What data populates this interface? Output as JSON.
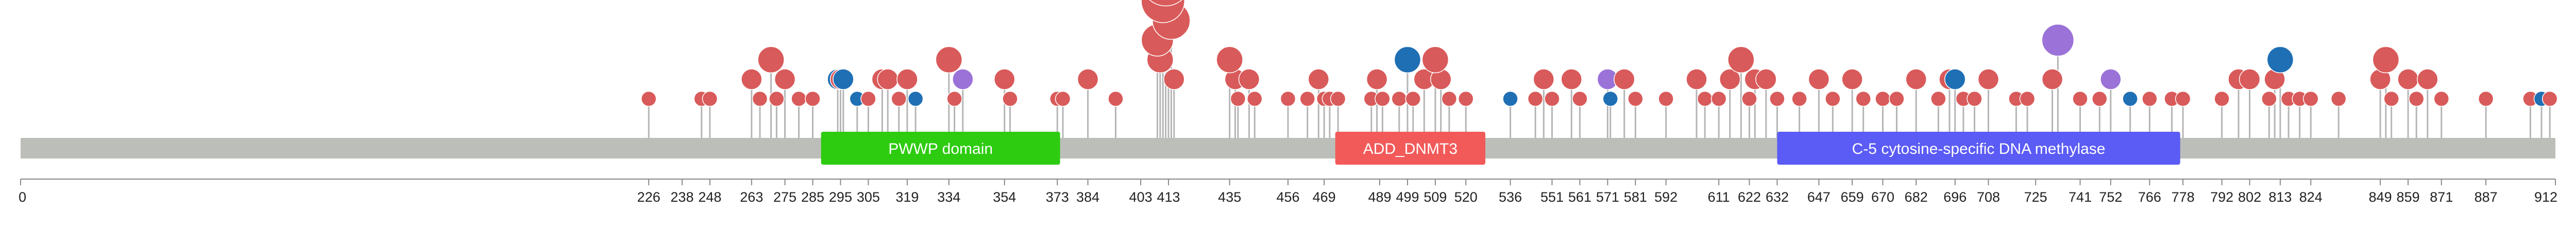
{
  "chart_data": {
    "type": "lollipop",
    "xlim": [
      0,
      912
    ],
    "tick_labels": [
      "0",
      "226",
      "238",
      "248",
      "263",
      "275",
      "285",
      "295",
      "305",
      "319",
      "334",
      "354",
      "373",
      "384",
      "403",
      "413",
      "435",
      "456",
      "469",
      "489",
      "499",
      "509",
      "520",
      "536",
      "551",
      "561",
      "571",
      "581",
      "592",
      "611",
      "622",
      "632",
      "647",
      "659",
      "670",
      "682",
      "696",
      "708",
      "725",
      "741",
      "752",
      "766",
      "778",
      "792",
      "802",
      "813",
      "824",
      "849",
      "859",
      "871",
      "887",
      "912"
    ],
    "domains": [
      {
        "label": "PWWP domain",
        "start": 288,
        "end": 374,
        "color": "#2ecc11"
      },
      {
        "label": "ADD_DNMT3",
        "start": 473,
        "end": 527,
        "color": "#f25a5a"
      },
      {
        "label": "C-5 cytosine-specific DNA methylase",
        "start": 632,
        "end": 777,
        "color": "#5b5bf5"
      }
    ],
    "mutations": [
      {
        "pos": 226,
        "count": 1,
        "color": "#d95a5a"
      },
      {
        "pos": 245,
        "count": 1,
        "color": "#d95a5a"
      },
      {
        "pos": 248,
        "count": 1,
        "color": "#d95a5a"
      },
      {
        "pos": 263,
        "count": 2,
        "color": "#d95a5a"
      },
      {
        "pos": 266,
        "count": 1,
        "color": "#d95a5a"
      },
      {
        "pos": 270,
        "count": 3,
        "color": "#d95a5a"
      },
      {
        "pos": 272,
        "count": 1,
        "color": "#d95a5a"
      },
      {
        "pos": 275,
        "count": 2,
        "color": "#d95a5a"
      },
      {
        "pos": 280,
        "count": 1,
        "color": "#d95a5a"
      },
      {
        "pos": 285,
        "count": 1,
        "color": "#d95a5a"
      },
      {
        "pos": 294,
        "count": 2,
        "color": "#1f6fb4"
      },
      {
        "pos": 295,
        "count": 2,
        "color": "#d95a5a"
      },
      {
        "pos": 296,
        "count": 2,
        "color": "#1f6fb4"
      },
      {
        "pos": 301,
        "count": 1,
        "color": "#1f6fb4"
      },
      {
        "pos": 305,
        "count": 1,
        "color": "#d95a5a"
      },
      {
        "pos": 310,
        "count": 2,
        "color": "#d95a5a"
      },
      {
        "pos": 312,
        "count": 2,
        "color": "#d95a5a"
      },
      {
        "pos": 316,
        "count": 1,
        "color": "#d95a5a"
      },
      {
        "pos": 319,
        "count": 2,
        "color": "#d95a5a"
      },
      {
        "pos": 322,
        "count": 1,
        "color": "#1f6fb4"
      },
      {
        "pos": 334,
        "count": 3,
        "color": "#d95a5a"
      },
      {
        "pos": 336,
        "count": 1,
        "color": "#d95a5a"
      },
      {
        "pos": 339,
        "count": 2,
        "color": "#9b72d8"
      },
      {
        "pos": 354,
        "count": 2,
        "color": "#d95a5a"
      },
      {
        "pos": 356,
        "count": 1,
        "color": "#d95a5a"
      },
      {
        "pos": 373,
        "count": 1,
        "color": "#d95a5a"
      },
      {
        "pos": 375,
        "count": 1,
        "color": "#d95a5a"
      },
      {
        "pos": 384,
        "count": 2,
        "color": "#d95a5a"
      },
      {
        "pos": 394,
        "count": 1,
        "color": "#d95a5a"
      },
      {
        "pos": 409,
        "count": 4,
        "color": "#d95a5a"
      },
      {
        "pos": 410,
        "count": 3,
        "color": "#d95a5a"
      },
      {
        "pos": 411,
        "count": 6,
        "color": "#d95a5a"
      },
      {
        "pos": 412,
        "count": 7,
        "color": "#d95a5a"
      },
      {
        "pos": 413,
        "count": 8,
        "color": "#d95a5a"
      },
      {
        "pos": 414,
        "count": 5,
        "color": "#d95a5a"
      },
      {
        "pos": 415,
        "count": 2,
        "color": "#d95a5a"
      },
      {
        "pos": 435,
        "count": 3,
        "color": "#d95a5a"
      },
      {
        "pos": 437,
        "count": 2,
        "color": "#d95a5a"
      },
      {
        "pos": 438,
        "count": 1,
        "color": "#d95a5a"
      },
      {
        "pos": 442,
        "count": 2,
        "color": "#d95a5a"
      },
      {
        "pos": 444,
        "count": 1,
        "color": "#d95a5a"
      },
      {
        "pos": 456,
        "count": 1,
        "color": "#d95a5a"
      },
      {
        "pos": 463,
        "count": 1,
        "color": "#d95a5a"
      },
      {
        "pos": 467,
        "count": 2,
        "color": "#d95a5a"
      },
      {
        "pos": 469,
        "count": 1,
        "color": "#d95a5a"
      },
      {
        "pos": 471,
        "count": 1,
        "color": "#d95a5a"
      },
      {
        "pos": 474,
        "count": 1,
        "color": "#d95a5a"
      },
      {
        "pos": 486,
        "count": 1,
        "color": "#d95a5a"
      },
      {
        "pos": 488,
        "count": 2,
        "color": "#d95a5a"
      },
      {
        "pos": 490,
        "count": 1,
        "color": "#d95a5a"
      },
      {
        "pos": 496,
        "count": 1,
        "color": "#d95a5a"
      },
      {
        "pos": 499,
        "count": 3,
        "color": "#1f6fb4"
      },
      {
        "pos": 501,
        "count": 1,
        "color": "#d95a5a"
      },
      {
        "pos": 505,
        "count": 2,
        "color": "#d95a5a"
      },
      {
        "pos": 509,
        "count": 3,
        "color": "#d95a5a"
      },
      {
        "pos": 511,
        "count": 2,
        "color": "#d95a5a"
      },
      {
        "pos": 514,
        "count": 1,
        "color": "#d95a5a"
      },
      {
        "pos": 520,
        "count": 1,
        "color": "#d95a5a"
      },
      {
        "pos": 536,
        "count": 1,
        "color": "#1f6fb4"
      },
      {
        "pos": 545,
        "count": 1,
        "color": "#d95a5a"
      },
      {
        "pos": 548,
        "count": 2,
        "color": "#d95a5a"
      },
      {
        "pos": 551,
        "count": 1,
        "color": "#d95a5a"
      },
      {
        "pos": 558,
        "count": 2,
        "color": "#d95a5a"
      },
      {
        "pos": 561,
        "count": 1,
        "color": "#d95a5a"
      },
      {
        "pos": 571,
        "count": 2,
        "color": "#9b72d8"
      },
      {
        "pos": 572,
        "count": 1,
        "color": "#1f6fb4"
      },
      {
        "pos": 577,
        "count": 2,
        "color": "#d95a5a"
      },
      {
        "pos": 581,
        "count": 1,
        "color": "#d95a5a"
      },
      {
        "pos": 592,
        "count": 1,
        "color": "#d95a5a"
      },
      {
        "pos": 603,
        "count": 2,
        "color": "#d95a5a"
      },
      {
        "pos": 606,
        "count": 1,
        "color": "#d95a5a"
      },
      {
        "pos": 611,
        "count": 1,
        "color": "#d95a5a"
      },
      {
        "pos": 615,
        "count": 2,
        "color": "#d95a5a"
      },
      {
        "pos": 619,
        "count": 3,
        "color": "#d95a5a"
      },
      {
        "pos": 622,
        "count": 1,
        "color": "#d95a5a"
      },
      {
        "pos": 624,
        "count": 2,
        "color": "#d95a5a"
      },
      {
        "pos": 628,
        "count": 2,
        "color": "#d95a5a"
      },
      {
        "pos": 632,
        "count": 1,
        "color": "#d95a5a"
      },
      {
        "pos": 640,
        "count": 1,
        "color": "#d95a5a"
      },
      {
        "pos": 647,
        "count": 2,
        "color": "#d95a5a"
      },
      {
        "pos": 652,
        "count": 1,
        "color": "#d95a5a"
      },
      {
        "pos": 659,
        "count": 2,
        "color": "#d95a5a"
      },
      {
        "pos": 663,
        "count": 1,
        "color": "#d95a5a"
      },
      {
        "pos": 670,
        "count": 1,
        "color": "#d95a5a"
      },
      {
        "pos": 675,
        "count": 1,
        "color": "#d95a5a"
      },
      {
        "pos": 682,
        "count": 2,
        "color": "#d95a5a"
      },
      {
        "pos": 690,
        "count": 1,
        "color": "#d95a5a"
      },
      {
        "pos": 694,
        "count": 2,
        "color": "#d95a5a"
      },
      {
        "pos": 696,
        "count": 2,
        "color": "#1f6fb4"
      },
      {
        "pos": 699,
        "count": 1,
        "color": "#d95a5a"
      },
      {
        "pos": 703,
        "count": 1,
        "color": "#d95a5a"
      },
      {
        "pos": 708,
        "count": 2,
        "color": "#d95a5a"
      },
      {
        "pos": 718,
        "count": 1,
        "color": "#d95a5a"
      },
      {
        "pos": 722,
        "count": 1,
        "color": "#d95a5a"
      },
      {
        "pos": 731,
        "count": 2,
        "color": "#d95a5a"
      },
      {
        "pos": 733,
        "count": 4,
        "color": "#9b72d8"
      },
      {
        "pos": 741,
        "count": 1,
        "color": "#d95a5a"
      },
      {
        "pos": 748,
        "count": 1,
        "color": "#d95a5a"
      },
      {
        "pos": 752,
        "count": 2,
        "color": "#9b72d8"
      },
      {
        "pos": 759,
        "count": 1,
        "color": "#1f6fb4"
      },
      {
        "pos": 766,
        "count": 1,
        "color": "#d95a5a"
      },
      {
        "pos": 774,
        "count": 1,
        "color": "#d95a5a"
      },
      {
        "pos": 778,
        "count": 1,
        "color": "#d95a5a"
      },
      {
        "pos": 792,
        "count": 1,
        "color": "#d95a5a"
      },
      {
        "pos": 798,
        "count": 2,
        "color": "#d95a5a"
      },
      {
        "pos": 802,
        "count": 2,
        "color": "#d95a5a"
      },
      {
        "pos": 809,
        "count": 1,
        "color": "#d95a5a"
      },
      {
        "pos": 811,
        "count": 2,
        "color": "#d95a5a"
      },
      {
        "pos": 813,
        "count": 3,
        "color": "#1f6fb4"
      },
      {
        "pos": 816,
        "count": 1,
        "color": "#d95a5a"
      },
      {
        "pos": 820,
        "count": 1,
        "color": "#d95a5a"
      },
      {
        "pos": 824,
        "count": 1,
        "color": "#d95a5a"
      },
      {
        "pos": 834,
        "count": 1,
        "color": "#d95a5a"
      },
      {
        "pos": 849,
        "count": 2,
        "color": "#d95a5a"
      },
      {
        "pos": 851,
        "count": 3,
        "color": "#d95a5a"
      },
      {
        "pos": 853,
        "count": 1,
        "color": "#d95a5a"
      },
      {
        "pos": 859,
        "count": 2,
        "color": "#d95a5a"
      },
      {
        "pos": 862,
        "count": 1,
        "color": "#d95a5a"
      },
      {
        "pos": 866,
        "count": 2,
        "color": "#d95a5a"
      },
      {
        "pos": 871,
        "count": 1,
        "color": "#d95a5a"
      },
      {
        "pos": 887,
        "count": 1,
        "color": "#d95a5a"
      },
      {
        "pos": 903,
        "count": 1,
        "color": "#d95a5a"
      },
      {
        "pos": 907,
        "count": 1,
        "color": "#1f6fb4"
      },
      {
        "pos": 910,
        "count": 1,
        "color": "#d95a5a"
      }
    ],
    "colors": {
      "backbone": "#bcbfb9",
      "stem": "#b5b5b5",
      "axis": "#888888"
    }
  }
}
